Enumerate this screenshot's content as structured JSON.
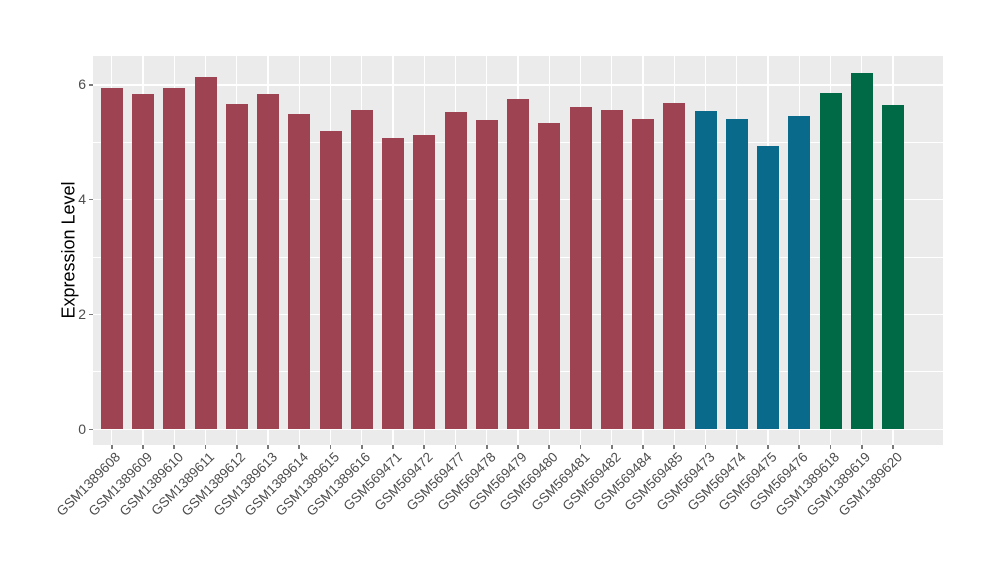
{
  "chart_data": {
    "type": "bar",
    "ylabel": "Expression Level",
    "xlabel": "",
    "ylim": [
      0,
      6.55
    ],
    "yticks": [
      0,
      2,
      4,
      6
    ],
    "minor_gridlines": [
      1,
      3,
      5
    ],
    "grid": "on",
    "legend": "none",
    "categories": [
      "GSM1389608",
      "GSM1389609",
      "GSM1389610",
      "GSM1389611",
      "GSM1389612",
      "GSM1389613",
      "GSM1389614",
      "GSM1389615",
      "GSM1389616",
      "GSM569471",
      "GSM569472",
      "GSM569477",
      "GSM569478",
      "GSM569479",
      "GSM569480",
      "GSM569481",
      "GSM569482",
      "GSM569484",
      "GSM569485",
      "GSM569473",
      "GSM569474",
      "GSM569475",
      "GSM569476",
      "GSM1389618",
      "GSM1389619",
      "GSM1389620"
    ],
    "values": [
      5.94,
      5.84,
      5.94,
      6.14,
      5.66,
      5.85,
      5.49,
      5.2,
      5.57,
      5.07,
      5.13,
      5.52,
      5.38,
      5.76,
      5.34,
      5.61,
      5.57,
      5.4,
      5.68,
      5.55,
      5.41,
      4.94,
      5.45,
      5.86,
      6.2,
      5.65
    ],
    "bar_color_keys": [
      "maroon",
      "maroon",
      "maroon",
      "maroon",
      "maroon",
      "maroon",
      "maroon",
      "maroon",
      "maroon",
      "maroon",
      "maroon",
      "maroon",
      "maroon",
      "maroon",
      "maroon",
      "maroon",
      "maroon",
      "maroon",
      "maroon",
      "teal",
      "teal",
      "teal",
      "teal",
      "green",
      "green",
      "green"
    ],
    "groups": [
      {
        "name": "group-1",
        "color": "#9E4352",
        "count": 19,
        "first": "GSM1389608",
        "last": "GSM569485"
      },
      {
        "name": "group-2",
        "color": "#0A6A8C",
        "count": 4,
        "first": "GSM569473",
        "last": "GSM569476"
      },
      {
        "name": "group-3",
        "color": "#006946",
        "count": 3,
        "first": "GSM1389618",
        "last": "GSM1389620"
      }
    ]
  },
  "style": {
    "palette": {
      "maroon": "#9E4352",
      "teal": "#0A6A8C",
      "green": "#006946"
    },
    "panel_bg": "#EBEBEB",
    "grid_color": "#FFFFFF",
    "axis_text_color": "#4D4D4D",
    "axis_title_color": "#000000",
    "tick_color": "#7a7a7a",
    "page_bg": "#FFFFFF"
  }
}
